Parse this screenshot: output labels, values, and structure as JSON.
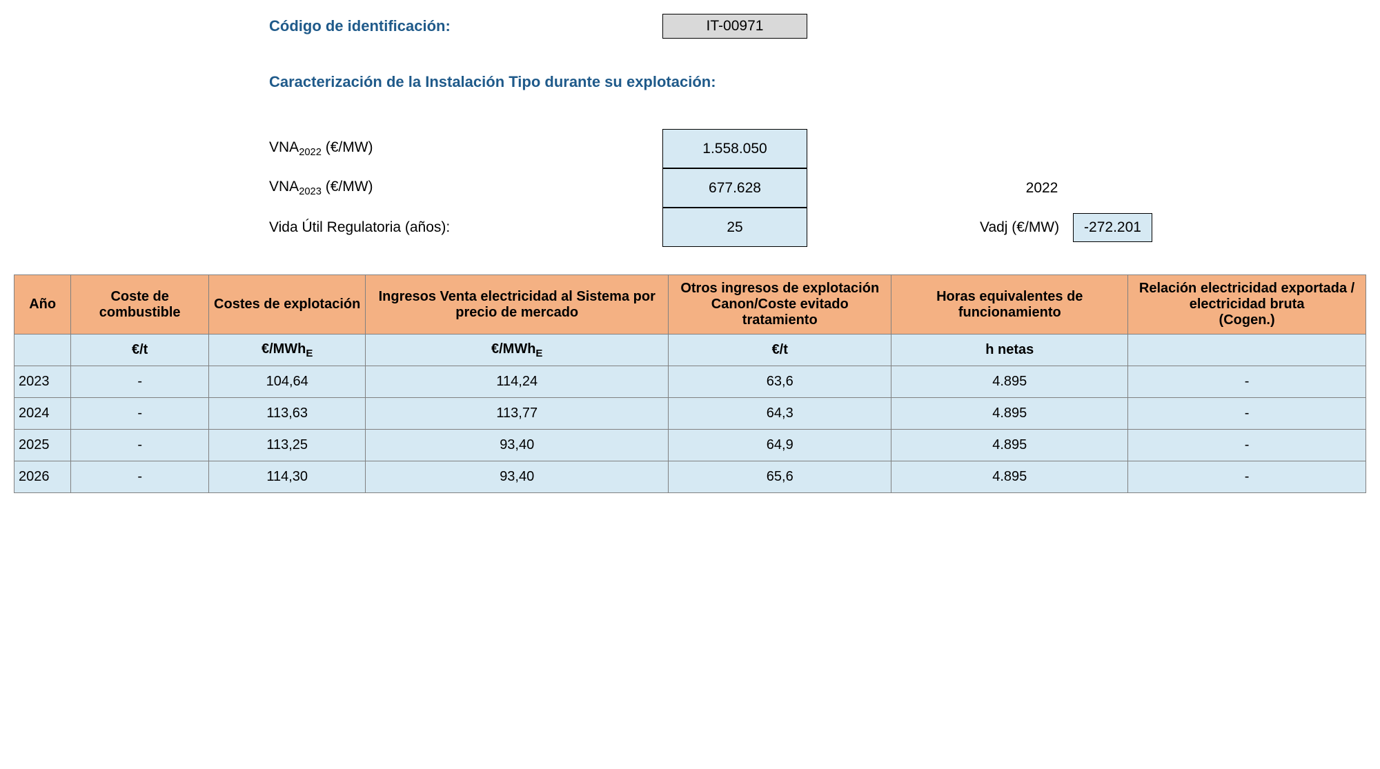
{
  "colors": {
    "heading": "#1f5a8a",
    "header_bg": "#f4b183",
    "cell_bg": "#d6e9f3",
    "id_bg": "#d9d9d9",
    "border": "#808080",
    "box_border": "#000000",
    "text": "#000000",
    "page_bg": "#ffffff"
  },
  "header": {
    "id_label": "Código de identificación:",
    "id_value": "IT-00971",
    "subtitle": "Caracterización de la Instalación Tipo durante su explotación:"
  },
  "params": {
    "vna2022": {
      "label_prefix": "VNA",
      "label_sub": "2022",
      "label_suffix": " (€/MW)",
      "value": "1.558.050"
    },
    "vna2023": {
      "label_prefix": "VNA",
      "label_sub": "2023",
      "label_suffix": " (€/MW)",
      "value": "677.628"
    },
    "vida": {
      "label": "Vida Útil Regulatoria (años):",
      "value": "25"
    },
    "vadj": {
      "year": "2022",
      "label": "Vadj (€/MW)",
      "value": "-272.201"
    }
  },
  "table": {
    "type": "table",
    "header_fontsize": 20,
    "cell_fontsize": 20,
    "header_bg": "#f4b183",
    "cell_bg": "#d6e9f3",
    "border_color": "#808080",
    "col_widths_pct": [
      4.2,
      10.2,
      11.6,
      22.4,
      16.5,
      17.5,
      17.6
    ],
    "columns": [
      "Año",
      "Coste de combustible",
      "Costes de explotación",
      "Ingresos Venta electricidad al Sistema por precio de mercado",
      "Otros ingresos de explotación Canon/Coste evitado tratamiento",
      "Horas equivalentes de funcionamiento",
      "Relación electricidad exportada / electricidad bruta\n(Cogen.)"
    ],
    "units": [
      "",
      "€/t",
      "€/MWhE",
      "€/MWhE",
      "€/t",
      "h netas",
      ""
    ],
    "rows": [
      [
        "2023",
        "-",
        "104,64",
        "114,24",
        "63,6",
        "4.895",
        "-"
      ],
      [
        "2024",
        "-",
        "113,63",
        "113,77",
        "64,3",
        "4.895",
        "-"
      ],
      [
        "2025",
        "-",
        "113,25",
        "93,40",
        "64,9",
        "4.895",
        "-"
      ],
      [
        "2026",
        "-",
        "114,30",
        "93,40",
        "65,6",
        "4.895",
        "-"
      ]
    ]
  }
}
